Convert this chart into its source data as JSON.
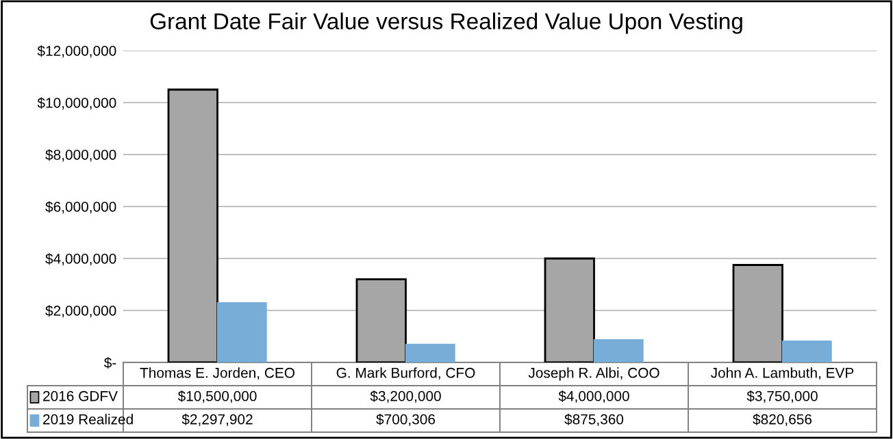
{
  "chart_data": {
    "type": "bar",
    "title": "Grant Date Fair Value versus Realized Value Upon Vesting",
    "categories": [
      "Thomas E. Jorden, CEO",
      "G. Mark Burford, CFO",
      "Joseph R. Albi, COO",
      "John A. Lambuth, EVP"
    ],
    "series": [
      {
        "name": "2016 GDFV",
        "color": "#a6a6a6",
        "values": [
          10500000,
          3200000,
          4000000,
          3750000
        ],
        "value_labels": [
          "$10,500,000",
          "$3,200,000",
          "$4,000,000",
          "$3,750,000"
        ]
      },
      {
        "name": "2019 Realized",
        "color": "#77add6",
        "values": [
          2297902,
          700306,
          875360,
          820656
        ],
        "value_labels": [
          "$2,297,902",
          "$700,306",
          "$875,360",
          "$820,656"
        ]
      }
    ],
    "ylim": [
      0,
      12000000
    ],
    "yticks": [
      {
        "value": 0,
        "label": "$-"
      },
      {
        "value": 2000000,
        "label": "$2,000,000"
      },
      {
        "value": 4000000,
        "label": "$4,000,000"
      },
      {
        "value": 6000000,
        "label": "$6,000,000"
      },
      {
        "value": 8000000,
        "label": "$8,000,000"
      },
      {
        "value": 10000000,
        "label": "$10,000,000"
      },
      {
        "value": 12000000,
        "label": "$12,000,000"
      }
    ],
    "grid": "y",
    "legend": "bottom left"
  }
}
